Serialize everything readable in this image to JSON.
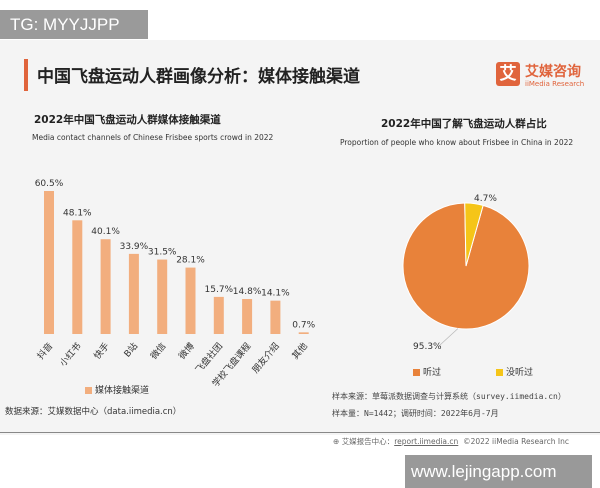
{
  "watermark_top": "TG: MYYJJPP",
  "watermark_bottom": "www.lejingapp.com",
  "page_title": "中国飞盘运动人群画像分析：媒体接触渠道",
  "logo": {
    "mark": "艾",
    "cn": "艾媒咨询",
    "en": "iiMedia Research"
  },
  "colors": {
    "accent": "#e0643c",
    "bar": "#f2ae7e",
    "heard": "#e8823a",
    "not_heard": "#f5c518"
  },
  "chart_data": [
    {
      "type": "bar",
      "title": "2022年中国飞盘运动人群媒体接触渠道",
      "subtitle": "Media contact channels of Chinese Frisbee sports crowd in 2022",
      "categories": [
        "抖音",
        "小红书",
        "快手",
        "B站",
        "微信",
        "微博",
        "飞盘社团",
        "学校飞盘课程",
        "朋友介绍",
        "其他"
      ],
      "series": [
        {
          "name": "媒体接触渠道",
          "values": [
            60.5,
            48.1,
            40.1,
            33.9,
            31.5,
            28.1,
            15.7,
            14.8,
            14.1,
            0.7
          ]
        }
      ],
      "data_labels": [
        "60.5%",
        "48.1%",
        "40.1%",
        "33.9%",
        "31.5%",
        "28.1%",
        "15.7%",
        "14.8%",
        "14.1%",
        "0.7%"
      ],
      "unit": "%",
      "legend": "bottom",
      "grid": false
    },
    {
      "type": "pie",
      "title": "2022年中国了解飞盘运动人群占比",
      "subtitle": "Proportion of people who know about Frisbee in China in 2022",
      "slices": [
        {
          "name": "听过",
          "value": 95.3,
          "label": "95.3%"
        },
        {
          "name": "没听过",
          "value": 4.7,
          "label": "4.7%"
        }
      ],
      "legend": "bottom"
    }
  ],
  "source_left": "数据来源：艾媒数据中心（data.iimedia.cn）",
  "sample_source": "样本来源：草莓派数据调查与计算系统（survey.iimedia.cn）",
  "sample_size": "样本量：N=1442；调研时间：2022年6月-7月",
  "footer": {
    "label": "艾媒报告中心：",
    "link": "report.iimedia.cn",
    "copyright": "©2022  iiMedia Research  Inc"
  }
}
